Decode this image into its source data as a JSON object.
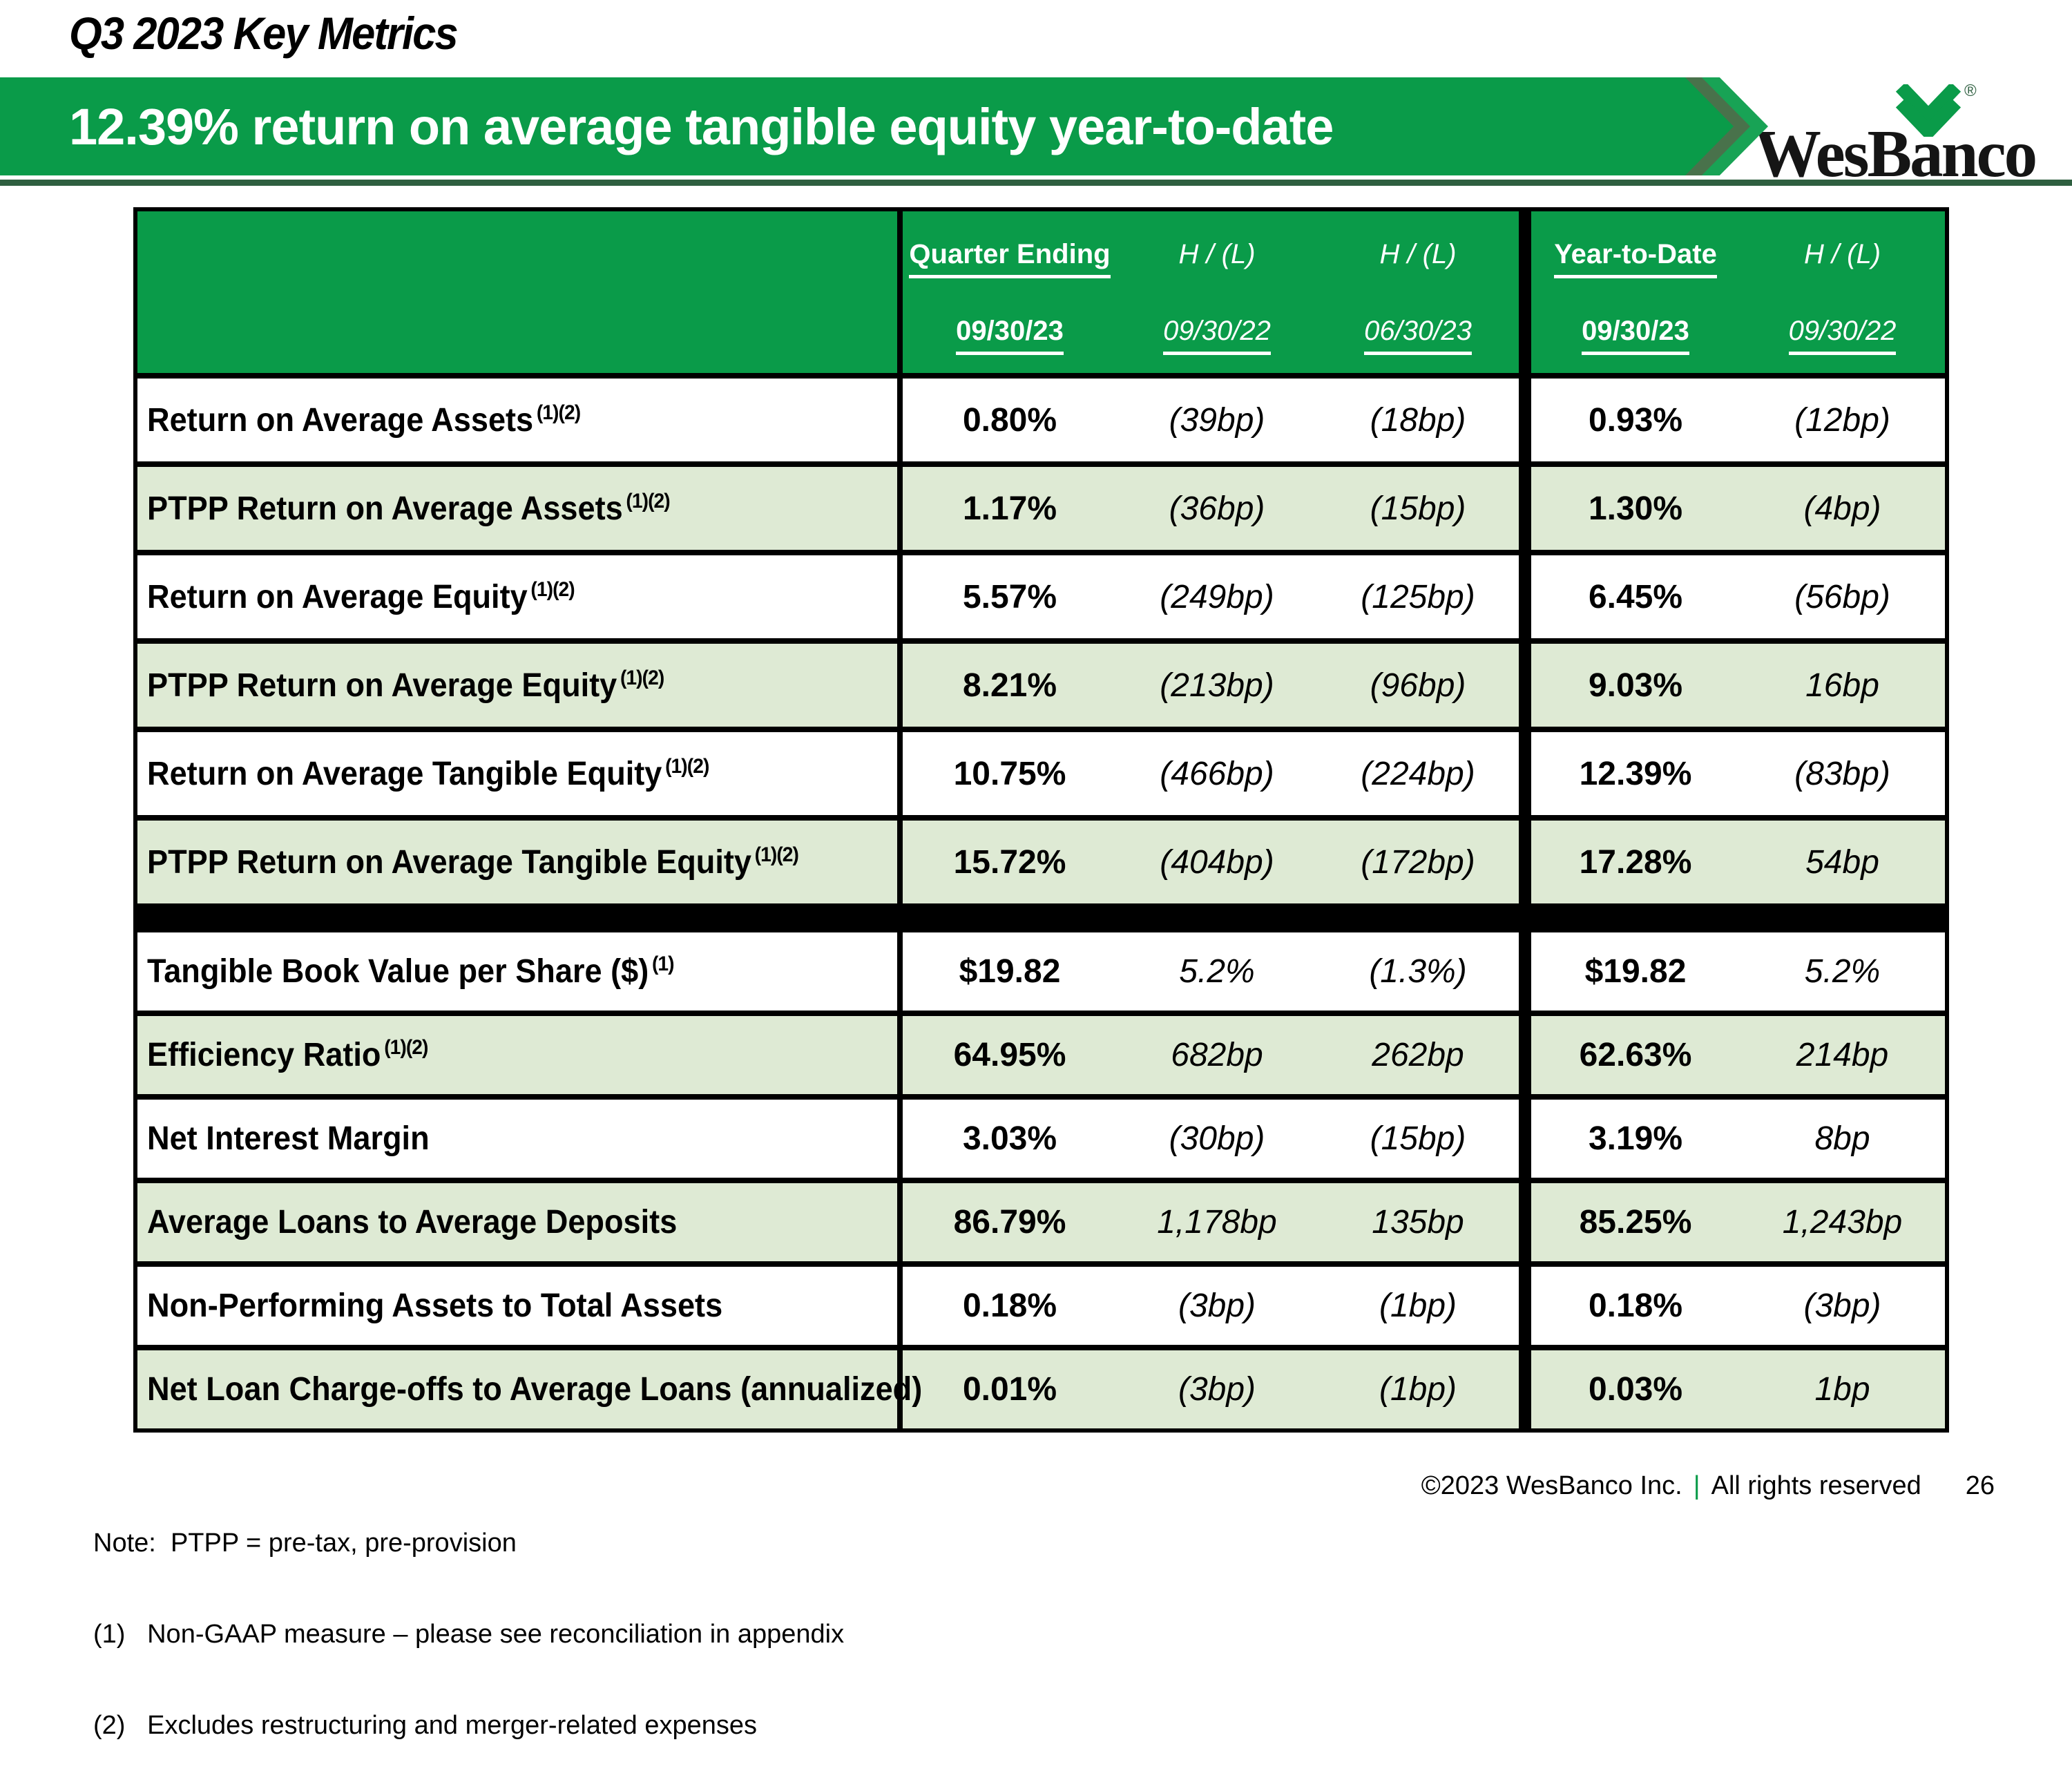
{
  "page": {
    "title": "Q3 2023 Key Metrics"
  },
  "banner": {
    "headline": "12.39% return on average tangible equity year-to-date"
  },
  "logo": {
    "brand": "WesBanco",
    "registered_mark": "®"
  },
  "colors": {
    "brand_green": "#0a9b49",
    "dark_green": "#2e5f40",
    "row_green": "#deead4",
    "chev_dark": "#49724b",
    "chev_light": "#18a355"
  },
  "table": {
    "header": {
      "col_groups": [
        {
          "label": "Quarter Ending"
        },
        {
          "label": "H / (L)"
        },
        {
          "label": "H / (L)"
        },
        {
          "label": "Year-to-Date"
        },
        {
          "label": "H / (L)"
        }
      ],
      "dates": [
        {
          "label": "09/30/23"
        },
        {
          "label": "09/30/22"
        },
        {
          "label": "06/30/23"
        },
        {
          "label": "09/30/23"
        },
        {
          "label": "09/30/22"
        }
      ]
    },
    "rows": [
      {
        "label": "Return on Average Assets",
        "sup": "(1)(2)",
        "values": [
          "0.80%",
          "(39bp)",
          "(18bp)",
          "0.93%",
          "(12bp)"
        ]
      },
      {
        "label": "PTPP Return on Average Assets",
        "sup": "(1)(2)",
        "values": [
          "1.17%",
          "(36bp)",
          "(15bp)",
          "1.30%",
          "(4bp)"
        ]
      },
      {
        "label": "Return on Average Equity",
        "sup": "(1)(2)",
        "values": [
          "5.57%",
          "(249bp)",
          "(125bp)",
          "6.45%",
          "(56bp)"
        ]
      },
      {
        "label": "PTPP Return on Average Equity",
        "sup": "(1)(2)",
        "values": [
          "8.21%",
          "(213bp)",
          "(96bp)",
          "9.03%",
          "16bp"
        ]
      },
      {
        "label": "Return on Average Tangible Equity",
        "sup": "(1)(2)",
        "values": [
          "10.75%",
          "(466bp)",
          "(224bp)",
          "12.39%",
          "(83bp)"
        ]
      },
      {
        "label": "PTPP Return on Average Tangible Equity",
        "sup": "(1)(2)",
        "values": [
          "15.72%",
          "(404bp)",
          "(172bp)",
          "17.28%",
          "54bp"
        ],
        "section_end": true
      },
      {
        "label": "Tangible Book Value per Share ($)",
        "sup": "(1)",
        "values": [
          "$19.82",
          "5.2%",
          "(1.3%)",
          "$19.82",
          "5.2%"
        ]
      },
      {
        "label": "Efficiency Ratio",
        "sup": "(1)(2)",
        "values": [
          "64.95%",
          "682bp",
          "262bp",
          "62.63%",
          "214bp"
        ]
      },
      {
        "label": "Net Interest Margin",
        "sup": "",
        "values": [
          "3.03%",
          "(30bp)",
          "(15bp)",
          "3.19%",
          "8bp"
        ]
      },
      {
        "label": "Average Loans to Average Deposits",
        "sup": "",
        "values": [
          "86.79%",
          "1,178bp",
          "135bp",
          "85.25%",
          "1,243bp"
        ]
      },
      {
        "label": "Non-Performing Assets to Total Assets",
        "sup": "",
        "values": [
          "0.18%",
          "(3bp)",
          "(1bp)",
          "0.18%",
          "(3bp)"
        ]
      },
      {
        "label": "Net Loan Charge-offs to Average Loans (annualized)",
        "sup": "",
        "values": [
          "0.01%",
          "(3bp)",
          "(1bp)",
          "0.03%",
          "1bp"
        ]
      }
    ]
  },
  "footnotes": {
    "note": "Note:  PTPP = pre-tax, pre-provision",
    "fn1": "(1)   Non-GAAP measure – please see reconciliation in appendix",
    "fn2": "(2)   Excludes restructuring and merger-related expenses"
  },
  "footer": {
    "copyright": "©2023 WesBanco Inc.",
    "separator": "|",
    "rights": "All rights reserved",
    "page_number": "26"
  }
}
